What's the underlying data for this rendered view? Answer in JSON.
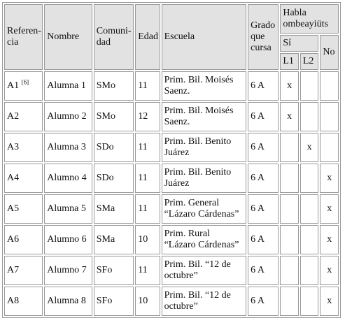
{
  "table": {
    "headers": {
      "referencia": "Referen-cia",
      "nombre": "Nombre",
      "comunidad": "Comuni-dad",
      "edad": "Edad",
      "escuela": "Escuela",
      "grado": "Grado que cursa",
      "habla": "Habla ombeayiüts",
      "si": "Sí",
      "l1": "L1",
      "l2": "L2",
      "no": "No"
    },
    "rows": [
      {
        "ref": "A1",
        "sup": "[6]",
        "nombre": "Alumna 1",
        "comunidad": "SMo",
        "edad": "11",
        "escuela": "Prim. Bil. Moisés Saenz.",
        "grado": "6 A",
        "l1": "x",
        "l2": "",
        "no": ""
      },
      {
        "ref": "A2",
        "sup": "",
        "nombre": "Alumno 2",
        "comunidad": "SMo",
        "edad": "12",
        "escuela": "Prim. Bil. Moisés Saenz.",
        "grado": "6 A",
        "l1": "x",
        "l2": "",
        "no": ""
      },
      {
        "ref": "A3",
        "sup": "",
        "nombre": "Alumna 3",
        "comunidad": "SDo",
        "edad": "11",
        "escuela": "Prim. Bil. Benito Juárez",
        "grado": "6 A",
        "l1": "",
        "l2": "x",
        "no": ""
      },
      {
        "ref": "A4",
        "sup": "",
        "nombre": "Alumno 4",
        "comunidad": "SDo",
        "edad": "11",
        "escuela": "Prim. Bil. Benito Juárez",
        "grado": "6 A",
        "l1": "",
        "l2": "",
        "no": "x"
      },
      {
        "ref": "A5",
        "sup": "",
        "nombre": "Alumna 5",
        "comunidad": "SMa",
        "edad": "11",
        "escuela": "Prim. General “Lázaro Cárdenas”",
        "grado": "6 A",
        "l1": "",
        "l2": "",
        "no": "x"
      },
      {
        "ref": "A6",
        "sup": "",
        "nombre": "Alumno 6",
        "comunidad": "SMa",
        "edad": "10",
        "escuela": "Prim. Rural “Lázaro Cárdenas”",
        "grado": "6 A",
        "l1": "",
        "l2": "",
        "no": "x"
      },
      {
        "ref": "A7",
        "sup": "",
        "nombre": "Alumno 7",
        "comunidad": "SFo",
        "edad": "11",
        "escuela": "Prim. Bil. “12 de octubre”",
        "grado": "6 A",
        "l1": "",
        "l2": "",
        "no": "x"
      },
      {
        "ref": "A8",
        "sup": "",
        "nombre": "Alumna 8",
        "comunidad": "SFo",
        "edad": "10",
        "escuela": "Prim. Bil. “12 de octubre”",
        "grado": "6 A",
        "l1": "",
        "l2": "",
        "no": "x"
      }
    ]
  }
}
